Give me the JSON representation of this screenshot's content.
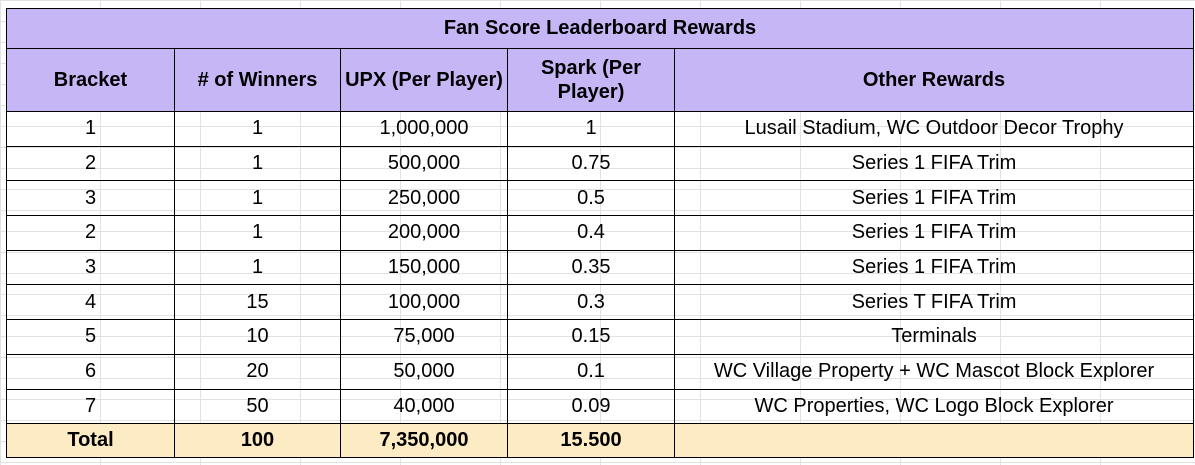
{
  "title": "Fan Score Leaderboard Rewards",
  "headers": [
    "Bracket",
    "# of Winners",
    "UPX (Per Player)",
    "Spark (Per Player)",
    "Other Rewards"
  ],
  "rows": [
    [
      "1",
      "1",
      "1,000,000",
      "1",
      "Lusail Stadium, WC Outdoor Decor Trophy"
    ],
    [
      "2",
      "1",
      "500,000",
      "0.75",
      "Series 1 FIFA Trim"
    ],
    [
      "3",
      "1",
      "250,000",
      "0.5",
      "Series 1 FIFA Trim"
    ],
    [
      "2",
      "1",
      "200,000",
      "0.4",
      "Series 1 FIFA Trim"
    ],
    [
      "3",
      "1",
      "150,000",
      "0.35",
      "Series 1 FIFA Trim"
    ],
    [
      "4",
      "15",
      "100,000",
      "0.3",
      "Series T FIFA Trim"
    ],
    [
      "5",
      "10",
      "75,000",
      "0.15",
      "Terminals"
    ],
    [
      "6",
      "20",
      "50,000",
      "0.1",
      "WC Village Property + WC Mascot Block Explorer"
    ],
    [
      "7",
      "50",
      "40,000",
      "0.09",
      "WC Properties, WC Logo Block Explorer"
    ]
  ],
  "total": [
    "Total",
    "100",
    "7,350,000",
    "15.500",
    ""
  ]
}
